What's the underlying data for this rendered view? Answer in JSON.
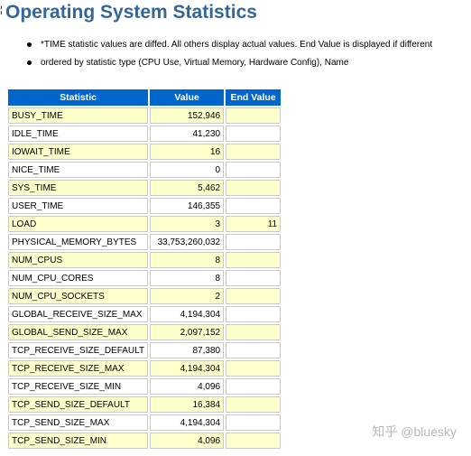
{
  "page": {
    "marker": "¦",
    "title": "Operating System Statistics",
    "notes": [
      "*TIME statistic values are diffed. All others display actual values. End Value is displayed if different",
      "ordered by statistic type (CPU Use, Virtual Memory, Hardware Config), Name"
    ]
  },
  "table": {
    "headers": {
      "statistic": "Statistic",
      "value": "Value",
      "end_value": "End Value"
    },
    "rows": [
      {
        "statistic": "BUSY_TIME",
        "value": "152,946",
        "end_value": ""
      },
      {
        "statistic": "IDLE_TIME",
        "value": "41,230",
        "end_value": ""
      },
      {
        "statistic": "IOWAIT_TIME",
        "value": "16",
        "end_value": ""
      },
      {
        "statistic": "NICE_TIME",
        "value": "0",
        "end_value": ""
      },
      {
        "statistic": "SYS_TIME",
        "value": "5,462",
        "end_value": ""
      },
      {
        "statistic": "USER_TIME",
        "value": "146,355",
        "end_value": ""
      },
      {
        "statistic": "LOAD",
        "value": "3",
        "end_value": "11"
      },
      {
        "statistic": "PHYSICAL_MEMORY_BYTES",
        "value": "33,753,260,032",
        "end_value": ""
      },
      {
        "statistic": "NUM_CPUS",
        "value": "8",
        "end_value": ""
      },
      {
        "statistic": "NUM_CPU_CORES",
        "value": "8",
        "end_value": ""
      },
      {
        "statistic": "NUM_CPU_SOCKETS",
        "value": "2",
        "end_value": ""
      },
      {
        "statistic": "GLOBAL_RECEIVE_SIZE_MAX",
        "value": "4,194,304",
        "end_value": ""
      },
      {
        "statistic": "GLOBAL_SEND_SIZE_MAX",
        "value": "2,097,152",
        "end_value": ""
      },
      {
        "statistic": "TCP_RECEIVE_SIZE_DEFAULT",
        "value": "87,380",
        "end_value": ""
      },
      {
        "statistic": "TCP_RECEIVE_SIZE_MAX",
        "value": "4,194,304",
        "end_value": ""
      },
      {
        "statistic": "TCP_RECEIVE_SIZE_MIN",
        "value": "4,096",
        "end_value": ""
      },
      {
        "statistic": "TCP_SEND_SIZE_DEFAULT",
        "value": "16,384",
        "end_value": ""
      },
      {
        "statistic": "TCP_SEND_SIZE_MAX",
        "value": "4,194,304",
        "end_value": ""
      },
      {
        "statistic": "TCP_SEND_SIZE_MIN",
        "value": "4,096",
        "end_value": ""
      }
    ]
  },
  "watermark": {
    "text": "知乎 @bluesky"
  },
  "colors": {
    "title": "#336699",
    "header_bg": "#0066cc",
    "row_odd_bg": "#ffffcc",
    "row_even_bg": "#ffffff"
  }
}
